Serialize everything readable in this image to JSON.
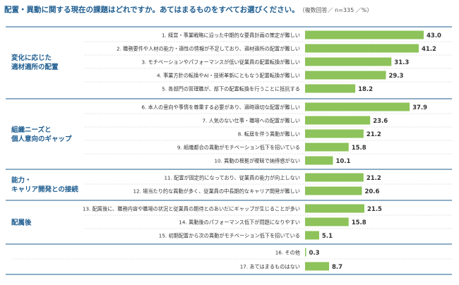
{
  "title": "配置・異動に関する現在の課題はどれですか。あてはまるものをすべてお選びください。",
  "note": "（複数回答／ n=335 ／%）",
  "colors": {
    "bar": "#8dc35a",
    "group_label": "#1d5c8f",
    "group_border": "#1d5c8f",
    "row_divider": "#c8c8c8",
    "value_text": "#333333",
    "label_text": "#333333"
  },
  "chart_data": {
    "type": "bar",
    "orientation": "horizontal",
    "unit": "%",
    "xlim": [
      0,
      45
    ],
    "groups": [
      {
        "label": [
          "変化に応じた",
          "適材適所の配置"
        ],
        "items": [
          0,
          1,
          2,
          3,
          4
        ]
      },
      {
        "label": [
          "組織ニーズと",
          "個人意向のギャップ"
        ],
        "items": [
          5,
          6,
          7,
          8,
          9
        ]
      },
      {
        "label": [
          "能力・",
          "キャリア開発との接続"
        ],
        "items": [
          10,
          11
        ]
      },
      {
        "label": [
          "配属後"
        ],
        "items": [
          12,
          13,
          14
        ]
      },
      {
        "label": [],
        "items": [
          15,
          16
        ]
      }
    ],
    "categories": [
      "1. 経営・事業戦略に沿った中期的な要員計画の策定が難しい",
      "2. 職務要件や人材の能力・適性の情報が不足しており、適材適所の配置が難しい",
      "3. モチベーションやパフォーマンスが低い従業員の配置転換が難しい",
      "4. 事業方針の転換やAI・技術革新にともなう配置転換が難しい",
      "5. 各部門の管理職が、部下の配置転換を行うことに抵抗する",
      "6. 本人の意向や事情を尊重する必要があり、適時適切な配置が難しい",
      "7. 人気のない仕事・職場への配置が難しい",
      "8. 転居を伴う異動が難しい",
      "9. 組織都合の異動がモチベーション低下を招いている",
      "10. 異動の根拠が曖昧で納得感がない",
      "11. 配置が固定的になっており、従業員の能力が向上しない",
      "12. 場当たり的な異動が多く、従業員の中長期的なキャリア開発が難しい",
      "13. 配属後に、職務内容や職場の状況と従業員の期待とのあいだにギャップが生じることが多い",
      "14. 異動後のパフォーマンス低下が問題になりやすい",
      "15. 初期配置から次の異動がモチベーション低下を招いている",
      "16. その他",
      "17. あてはまるものはない"
    ],
    "values": [
      43.0,
      41.2,
      31.3,
      29.3,
      18.2,
      37.9,
      23.6,
      21.2,
      15.8,
      10.1,
      21.2,
      20.6,
      21.5,
      15.8,
      5.1,
      0.3,
      8.7
    ],
    "value_labels": [
      "43.0",
      "41.2",
      "31.3",
      "29.3",
      "18.2",
      "37.9",
      "23.6",
      "21.2",
      "15.8",
      "10.1",
      "21.2",
      "20.6",
      "21.5",
      "15.8",
      "5.1",
      "0.3",
      "8.7"
    ]
  }
}
